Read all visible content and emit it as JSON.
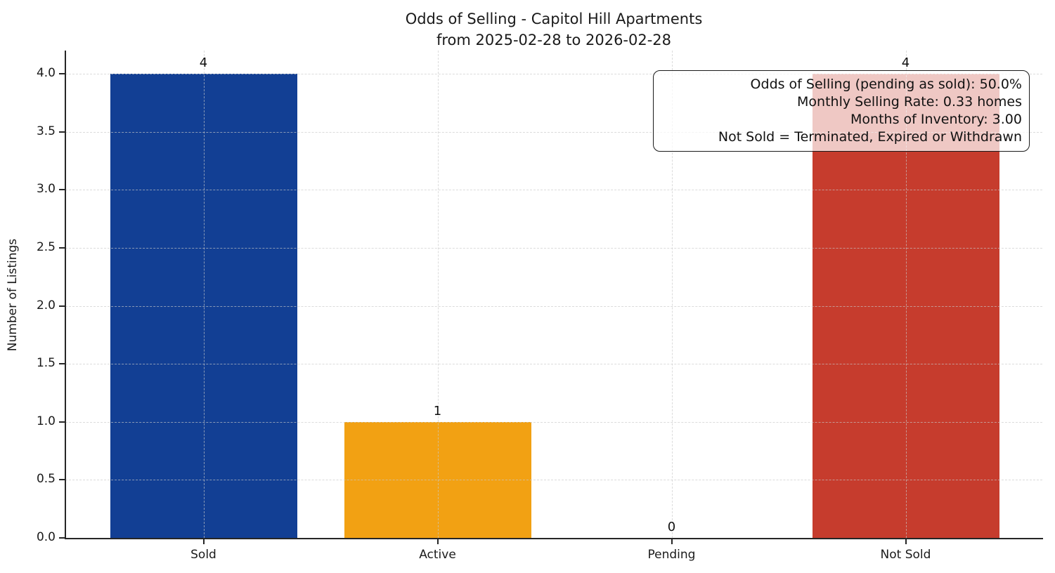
{
  "title": {
    "line1": "Odds of Selling - Capitol Hill Apartments",
    "line2": "from 2025-02-28 to 2026-02-28"
  },
  "ylabel": "Number of Listings",
  "annotation": {
    "lines": [
      "Odds of Selling (pending as sold): 50.0%",
      "Monthly Selling Rate: 0.33 homes",
      "Months of Inventory: 3.00",
      "Not Sold = Terminated, Expired or Withdrawn"
    ]
  },
  "chart_data": {
    "type": "bar",
    "title": "Odds of Selling - Capitol Hill Apartments from 2025-02-28 to 2026-02-28",
    "xlabel": "",
    "ylabel": "Number of Listings",
    "categories": [
      "Sold",
      "Active",
      "Pending",
      "Not Sold"
    ],
    "values": [
      4,
      1,
      0,
      4
    ],
    "value_labels": [
      "4",
      "1",
      "0",
      "4"
    ],
    "bar_colors": [
      "#123f94",
      "#f2a113",
      null,
      "#c63c2d"
    ],
    "ylim": [
      0,
      4.2
    ],
    "yticks": [
      "0.0",
      "0.5",
      "1.0",
      "1.5",
      "2.0",
      "2.5",
      "3.0",
      "3.5",
      "4.0"
    ],
    "grid": "dashed, both axes, drawn over bars",
    "legend": "none",
    "annotation_lines": [
      "Odds of Selling (pending as sold): 50.0%",
      "Monthly Selling Rate: 0.33 homes",
      "Months of Inventory: 3.00",
      "Not Sold = Terminated, Expired or Withdrawn"
    ]
  }
}
